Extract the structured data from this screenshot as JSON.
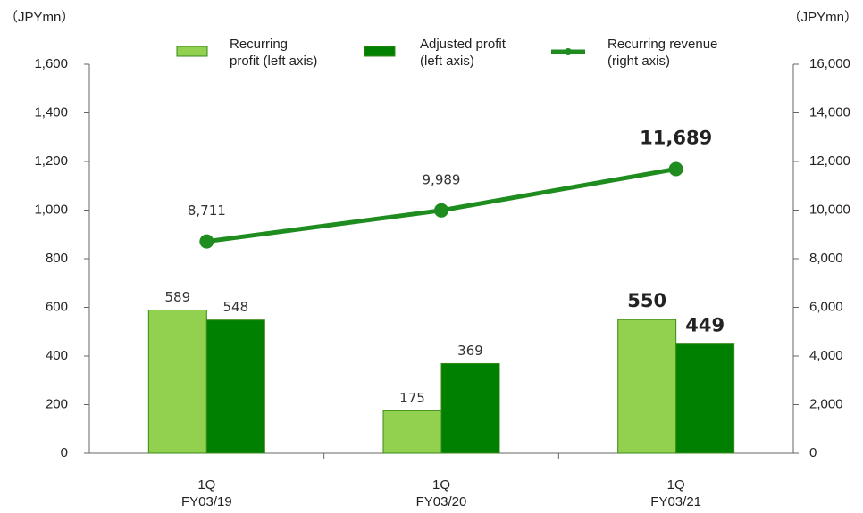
{
  "chart_data": {
    "type": "bar_line",
    "y_label": "（JPYmn）",
    "y2_label": "（JPYmn）",
    "categories": [
      "1Q\nFY03/19",
      "1Q\nFY03/20",
      "1Q\nFY03/21"
    ],
    "series": [
      {
        "name": "Recurring\nprofit (left axis)",
        "color": "#92d050",
        "type": "bar",
        "values": [
          589,
          175,
          550
        ]
      },
      {
        "name": "Adjusted profit\n(left axis)",
        "color": "#008000",
        "type": "bar",
        "values": [
          548,
          369,
          449
        ]
      },
      {
        "name": "Recurring revenue\n(right axis)",
        "color": "#1e8c1e",
        "type": "line",
        "axis": "y2",
        "values": [
          8711,
          9989,
          11689
        ],
        "value_labels": [
          "8,711",
          "9,989",
          "11,689"
        ]
      }
    ],
    "ylim": [
      0,
      1600
    ],
    "yticks": [
      0,
      200,
      400,
      600,
      800,
      {
        "value": 1000,
        "label": "1,000"
      },
      {
        "value": 1200,
        "label": "1,200"
      },
      {
        "value": 1400,
        "label": "1,400"
      },
      {
        "value": 1600,
        "label": "1,600"
      }
    ],
    "y2lim": [
      0,
      16000
    ],
    "y2ticks": [
      0,
      {
        "value": 2000,
        "label": "2,000"
      },
      {
        "value": 4000,
        "label": "4,000"
      },
      {
        "value": 6000,
        "label": "6,000"
      },
      {
        "value": 8000,
        "label": "8,000"
      },
      {
        "value": 10000,
        "label": "10,000"
      },
      {
        "value": 12000,
        "label": "12,000"
      },
      {
        "value": 14000,
        "label": "14,000"
      },
      {
        "value": 16000,
        "label": "16,000"
      }
    ],
    "legend": "top",
    "grid": false
  }
}
